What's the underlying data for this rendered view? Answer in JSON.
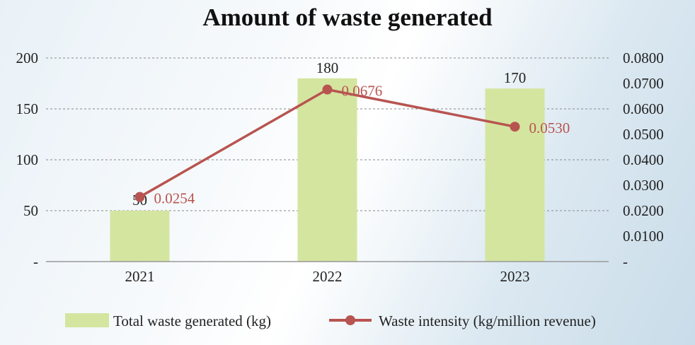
{
  "chart_data": {
    "type": "bar",
    "title": "Amount of waste generated",
    "categories": [
      "2021",
      "2022",
      "2023"
    ],
    "series": [
      {
        "name": "Total waste generated (kg)",
        "type": "bar",
        "axis": "left",
        "values": [
          50,
          180,
          170
        ],
        "labels": [
          "50",
          "180",
          "170"
        ],
        "color": "#d4e5a0"
      },
      {
        "name": "Waste intensity (kg/million revenue)",
        "type": "line",
        "axis": "right",
        "values": [
          0.0254,
          0.0676,
          0.053
        ],
        "labels": [
          "0.0254",
          "0.0676",
          "0.0530"
        ],
        "color": "#b85450"
      }
    ],
    "left_axis": {
      "ylim": [
        0,
        200
      ],
      "ticks": [
        0,
        50,
        100,
        150,
        200
      ],
      "tick_labels": [
        "-",
        "50",
        "100",
        "150",
        "200"
      ]
    },
    "right_axis": {
      "ylim": [
        0,
        0.08
      ],
      "ticks": [
        0,
        0.01,
        0.02,
        0.03,
        0.04,
        0.05,
        0.06,
        0.07,
        0.08
      ],
      "tick_labels": [
        "-",
        "0.0100",
        "0.0200",
        "0.0300",
        "0.0400",
        "0.0500",
        "0.0600",
        "0.0700",
        "0.0800"
      ]
    },
    "grid": true,
    "legend": "bottom"
  }
}
